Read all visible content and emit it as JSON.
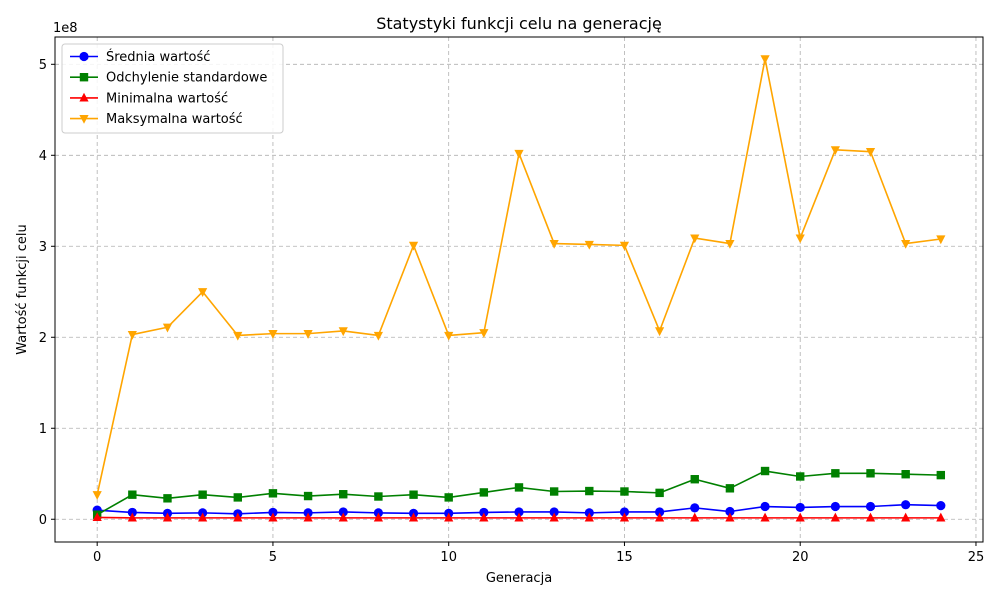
{
  "chart_data": {
    "type": "line",
    "title": "Statystyki funkcji celu na generację",
    "xlabel": "Generacja",
    "ylabel": "Wartość funkcji celu",
    "y_multiplier_label": "1e8",
    "xlim": [
      -1.2,
      25.2
    ],
    "ylim": [
      -25000000,
      530000000
    ],
    "xticks": [
      0,
      5,
      10,
      15,
      20,
      25
    ],
    "yticks": [
      0,
      100000000,
      200000000,
      300000000,
      400000000,
      500000000
    ],
    "ytick_labels": [
      "0",
      "1",
      "2",
      "3",
      "4",
      "5"
    ],
    "grid": true,
    "legend_position": "top-left",
    "x": [
      0,
      1,
      2,
      3,
      4,
      5,
      6,
      7,
      8,
      9,
      10,
      11,
      12,
      13,
      14,
      15,
      16,
      17,
      18,
      19,
      20,
      21,
      22,
      23,
      24
    ],
    "series": [
      {
        "name": "Średnia wartość",
        "color": "#0000ff",
        "marker": "circle",
        "values": [
          10000000,
          7500000,
          6500000,
          7000000,
          6000000,
          7500000,
          7000000,
          8000000,
          7000000,
          6500000,
          6500000,
          7500000,
          8000000,
          8000000,
          7000000,
          8000000,
          8000000,
          12500000,
          8500000,
          14000000,
          13000000,
          14000000,
          14000000,
          16000000,
          15000000
        ]
      },
      {
        "name": "Odchylenie standardowe",
        "color": "#008000",
        "marker": "square",
        "values": [
          5000000,
          27000000,
          23000000,
          27000000,
          24000000,
          28500000,
          25500000,
          27500000,
          25000000,
          27000000,
          24000000,
          29500000,
          35000000,
          30500000,
          31000000,
          30500000,
          29000000,
          44000000,
          34000000,
          53000000,
          47000000,
          50500000,
          50500000,
          49500000,
          48500000
        ]
      },
      {
        "name": "Minimalna wartość",
        "color": "#ff0000",
        "marker": "triangle-up",
        "values": [
          2000000,
          1500000,
          1500000,
          1500000,
          1500000,
          1500000,
          1500000,
          1500000,
          1500000,
          1500000,
          1500000,
          1500000,
          1500000,
          1500000,
          1500000,
          1500000,
          1500000,
          1500000,
          1500000,
          1500000,
          1500000,
          1500000,
          1500000,
          1500000,
          1500000
        ]
      },
      {
        "name": "Maksymalna wartość",
        "color": "#ffa500",
        "marker": "triangle-down",
        "values": [
          27000000,
          203000000,
          211000000,
          250000000,
          202000000,
          204000000,
          204000000,
          207000000,
          202000000,
          301000000,
          202000000,
          205000000,
          402000000,
          303000000,
          302000000,
          301000000,
          207000000,
          309000000,
          303000000,
          506000000,
          309000000,
          406000000,
          404000000,
          303000000,
          308000000
        ]
      }
    ]
  }
}
